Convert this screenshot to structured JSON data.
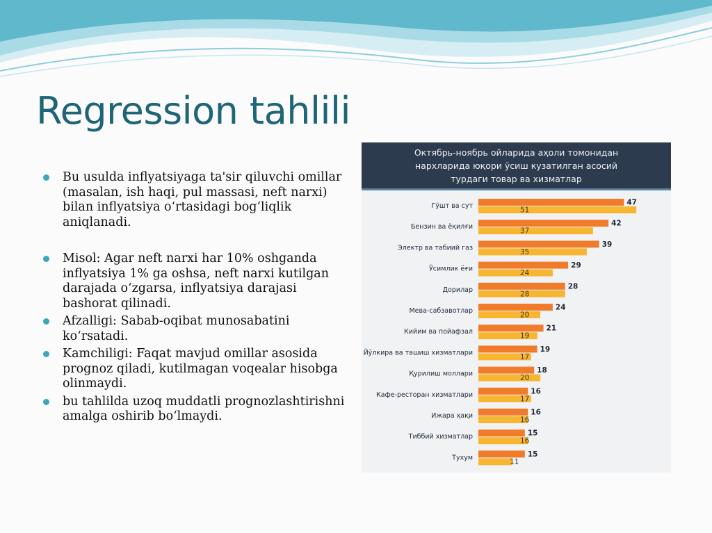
{
  "slide": {
    "title": "Regression tahlili",
    "bullets": [
      "Bu usulda inflyatsiyaga ta'sir qiluvchi omillar (masalan, ish haqi, pul massasi, neft narxi) bilan inflyatsiya o‘rtasidagi bog‘liqlik aniqlanadi.",
      "Misol: Agar neft narxi har 10% oshganda inflyatsiya 1% ga oshsa, neft narxi kutilgan darajada o‘zgarsa, inflyatsiya darajasi bashorat qilinadi.",
      "Afzalligi: Sabab-oqibat munosabatini ko‘rsatadi.",
      "Kamchiligi: Faqat mavjud omillar asosida prognoz qiladi, kutilmagan voqealar hisobga olinmaydi.",
      "bu tahlilda uzoq muddatli prognozlashtirishni amalga oshirib bo‘lmaydi."
    ],
    "colors": {
      "title": "#1d6577",
      "bullet": "#3aa7bd",
      "wave_dark": "#5fb8cc",
      "wave_light": "#a9dbe6"
    }
  },
  "chart_data": {
    "type": "bar",
    "orientation": "horizontal",
    "title_lines": [
      "Октябрь-ноябрь ойларида аҳоли томонидан",
      "нархларида юқори ўсиш кузатилган асосий",
      "турдаги товар ва хизматлар"
    ],
    "categories": [
      "Гўшт ва сут",
      "Бензин ва ёқилғи",
      "Электр ва табиий газ",
      "Ўсимлик ёғи",
      "Дорилар",
      "Мева-сабзавотлар",
      "Кийим ва пойафзал",
      "Йўлкира ва ташиш хизматлари",
      "Қурилиш моллари",
      "Кафе-ресторан хизматлари",
      "Ижара ҳақи",
      "Тиббий хизматлар",
      "Тухум"
    ],
    "series": [
      {
        "values": [
          47,
          42,
          39,
          29,
          28,
          24,
          21,
          19,
          18,
          16,
          16,
          15,
          15
        ],
        "color": "#ef7b2b"
      },
      {
        "values": [
          51,
          37,
          35,
          24,
          28,
          20,
          19,
          17,
          20,
          17,
          16,
          16,
          11
        ],
        "color": "#f7b532"
      }
    ],
    "xlim": [
      0,
      55
    ],
    "grid": false,
    "legend": "none"
  }
}
